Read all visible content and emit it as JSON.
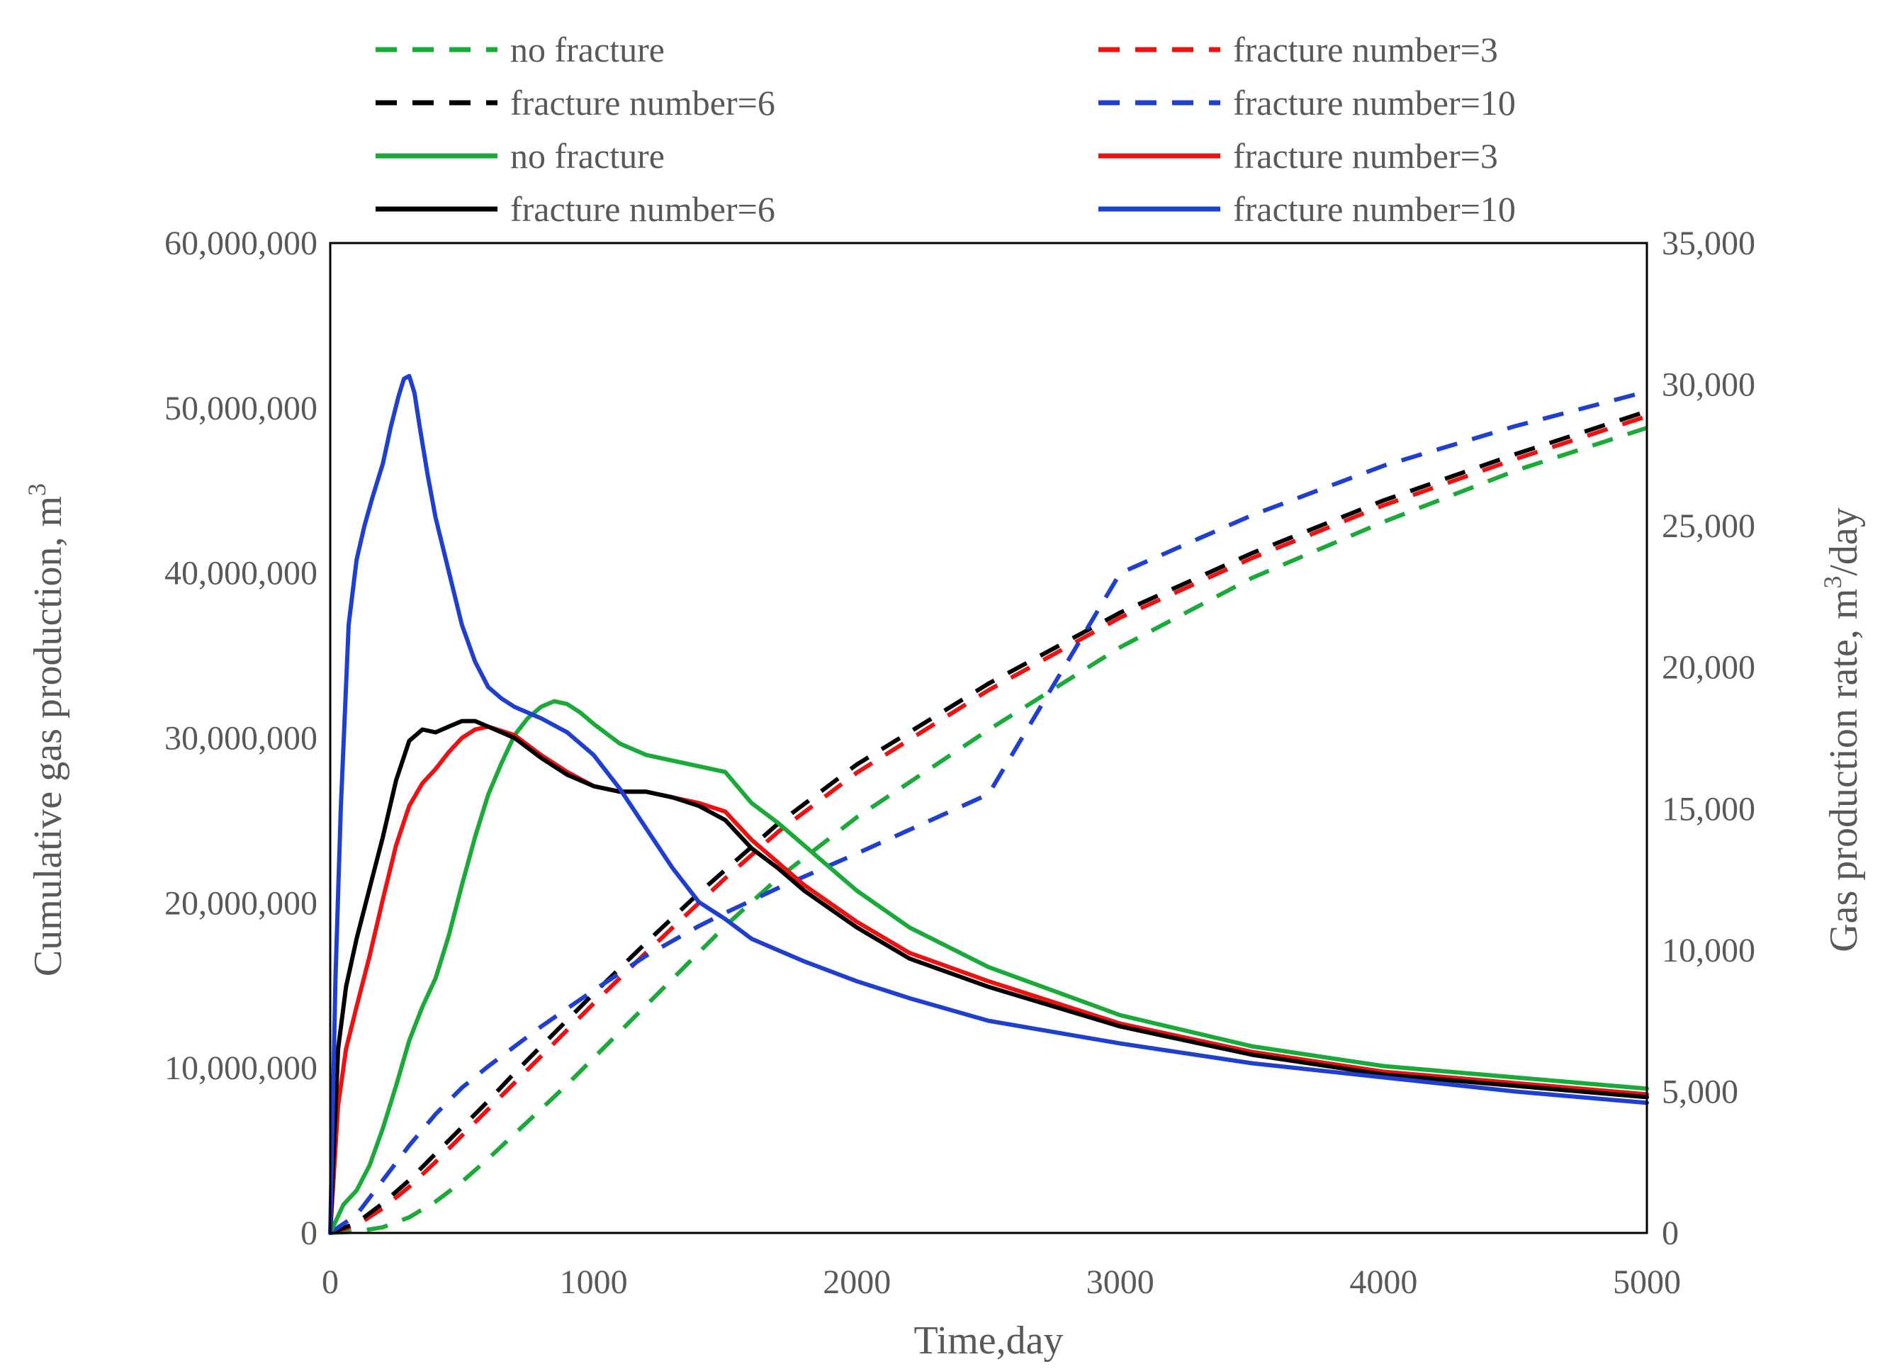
{
  "chart_data": {
    "type": "line",
    "dual_axis": true,
    "xlabel": "Time,day",
    "ylabel_left": "Cumulative gas production, m",
    "ylabel_left_sup": "3",
    "ylabel_right": "Gas production rate, m",
    "ylabel_right_sup": "3",
    "ylabel_right_suffix": "/day",
    "xlim": [
      0,
      5000
    ],
    "ylim_left": [
      0,
      60000000
    ],
    "ylim_right": [
      0,
      35000
    ],
    "x_ticks": [
      "0",
      "1000",
      "2000",
      "3000",
      "4000",
      "5000"
    ],
    "y_left_ticks": [
      "0",
      "10,000,000",
      "20,000,000",
      "30,000,000",
      "40,000,000",
      "50,000,000",
      "60,000,000"
    ],
    "y_right_ticks": [
      "0",
      "5,000",
      "10,000",
      "15,000",
      "20,000",
      "25,000",
      "30,000",
      "35,000"
    ],
    "grid": false,
    "legend_position": "top",
    "series": [
      {
        "name": "no fracture",
        "axis": "left",
        "style": "dashed",
        "color": "#1aaa3a",
        "x": [
          0,
          100,
          200,
          300,
          400,
          500,
          600,
          700,
          800,
          900,
          1000,
          1100,
          1200,
          1300,
          1400,
          1500,
          1700,
          2000,
          2500,
          3000,
          3500,
          4000,
          4500,
          5000
        ],
        "y": [
          0,
          80000,
          350000,
          950000,
          1900000,
          3100000,
          4500000,
          6000000,
          7500000,
          9000000,
          10600000,
          12200000,
          13800000,
          15400000,
          17000000,
          18600000,
          21500000,
          25200000,
          30500000,
          35500000,
          39700000,
          43100000,
          46200000,
          48800000
        ]
      },
      {
        "name": "fracture number=3",
        "axis": "left",
        "style": "dashed",
        "color": "#ee1111",
        "x": [
          0,
          100,
          200,
          300,
          400,
          500,
          600,
          700,
          800,
          900,
          1000,
          1200,
          1400,
          1500,
          1700,
          2000,
          2500,
          3000,
          3500,
          4000,
          4500,
          5000
        ],
        "y": [
          0,
          450000,
          1500000,
          2800000,
          4300000,
          5900000,
          7500000,
          9100000,
          10700000,
          12300000,
          13900000,
          17000000,
          20000000,
          21500000,
          24300000,
          27900000,
          32900000,
          37300000,
          40900000,
          44100000,
          46900000,
          49500000
        ]
      },
      {
        "name": "fracture number=6",
        "axis": "left",
        "style": "dashed",
        "color": "#000000",
        "x": [
          0,
          100,
          200,
          300,
          400,
          500,
          600,
          700,
          800,
          900,
          1000,
          1200,
          1400,
          1500,
          1700,
          2000,
          2500,
          3000,
          3500,
          4000,
          4500,
          5000
        ],
        "y": [
          0,
          600000,
          1800000,
          3200000,
          4800000,
          6400000,
          8000000,
          9700000,
          11300000,
          12900000,
          14500000,
          17600000,
          20600000,
          22000000,
          24800000,
          28400000,
          33300000,
          37600000,
          41200000,
          44400000,
          47200000,
          49800000
        ]
      },
      {
        "name": "fracture number=10",
        "axis": "left",
        "style": "dashed",
        "color": "#1f3fd0",
        "x": [
          0,
          100,
          200,
          300,
          400,
          500,
          600,
          700,
          800,
          900,
          1000,
          1200,
          1400,
          1500,
          1700,
          2000,
          2500,
          3000,
          3500,
          4000,
          4500,
          5000
        ],
        "y": [
          0,
          1100000,
          3200000,
          5300000,
          7200000,
          8800000,
          10100000,
          11300000,
          12500000,
          13600000,
          14700000,
          16800000,
          18600000,
          19400000,
          20900000,
          23000000,
          26600000,
          40000000,
          43500000,
          46500000,
          48900000,
          51000000
        ]
      },
      {
        "name": "no fracture",
        "axis": "right",
        "style": "solid",
        "color": "#1aaa3a",
        "x": [
          0,
          50,
          100,
          150,
          200,
          250,
          300,
          350,
          400,
          450,
          500,
          550,
          600,
          650,
          700,
          750,
          800,
          850,
          900,
          950,
          1000,
          1100,
          1200,
          1300,
          1400,
          1500,
          1600,
          1700,
          1800,
          2000,
          2200,
          2500,
          3000,
          3500,
          4000,
          4500,
          5000
        ],
        "y": [
          0,
          1000,
          1500,
          2400,
          3700,
          5200,
          6800,
          8000,
          9000,
          10500,
          12300,
          14000,
          15500,
          16600,
          17600,
          18200,
          18600,
          18800,
          18700,
          18400,
          18000,
          17300,
          16900,
          16700,
          16500,
          16300,
          15200,
          14500,
          13700,
          12100,
          10800,
          9400,
          7700,
          6600,
          5900,
          5500,
          5100
        ]
      },
      {
        "name": "fracture number=3",
        "axis": "right",
        "style": "solid",
        "color": "#ee1111",
        "x": [
          0,
          30,
          60,
          100,
          150,
          200,
          250,
          300,
          350,
          400,
          450,
          500,
          550,
          600,
          700,
          800,
          900,
          1000,
          1100,
          1200,
          1300,
          1400,
          1500,
          1600,
          1700,
          1800,
          2000,
          2200,
          2500,
          3000,
          3500,
          4000,
          4500,
          5000
        ],
        "y": [
          0,
          4500,
          6500,
          8000,
          9800,
          11800,
          13700,
          15100,
          15900,
          16400,
          17000,
          17500,
          17800,
          17900,
          17600,
          16900,
          16300,
          15800,
          15600,
          15600,
          15400,
          15200,
          14900,
          13900,
          13100,
          12300,
          11000,
          9900,
          8900,
          7400,
          6400,
          5700,
          5300,
          4900
        ]
      },
      {
        "name": "fracture number=6",
        "axis": "right",
        "style": "solid",
        "color": "#000000",
        "x": [
          0,
          30,
          60,
          100,
          150,
          200,
          250,
          300,
          350,
          400,
          450,
          500,
          550,
          600,
          700,
          800,
          900,
          1000,
          1100,
          1200,
          1300,
          1400,
          1500,
          1600,
          1700,
          1800,
          2000,
          2200,
          2500,
          3000,
          3500,
          4000,
          4500,
          5000
        ],
        "y": [
          0,
          6500,
          8700,
          10400,
          12200,
          14000,
          16000,
          17400,
          17800,
          17700,
          17900,
          18100,
          18100,
          17900,
          17500,
          16800,
          16200,
          15800,
          15600,
          15600,
          15400,
          15100,
          14600,
          13600,
          12900,
          12100,
          10800,
          9700,
          8700,
          7300,
          6300,
          5600,
          5200,
          4800
        ]
      },
      {
        "name": "fracture number=10",
        "axis": "right",
        "style": "solid",
        "color": "#1f3fd0",
        "x": [
          0,
          20,
          40,
          70,
          100,
          130,
          160,
          200,
          230,
          260,
          280,
          300,
          320,
          340,
          370,
          400,
          450,
          500,
          550,
          600,
          650,
          700,
          800,
          900,
          1000,
          1100,
          1200,
          1300,
          1400,
          1500,
          1600,
          1700,
          1800,
          2000,
          2200,
          2500,
          3000,
          3500,
          4000,
          4500,
          5000
        ],
        "y": [
          0,
          9000,
          15000,
          21500,
          23800,
          25000,
          26000,
          27200,
          28500,
          29600,
          30200,
          30300,
          29700,
          28500,
          26800,
          25300,
          23400,
          21500,
          20200,
          19300,
          18900,
          18600,
          18200,
          17700,
          16900,
          15700,
          14300,
          12900,
          11700,
          11100,
          10400,
          10000,
          9600,
          8900,
          8300,
          7500,
          6700,
          6000,
          5500,
          5000,
          4600
        ]
      }
    ]
  }
}
